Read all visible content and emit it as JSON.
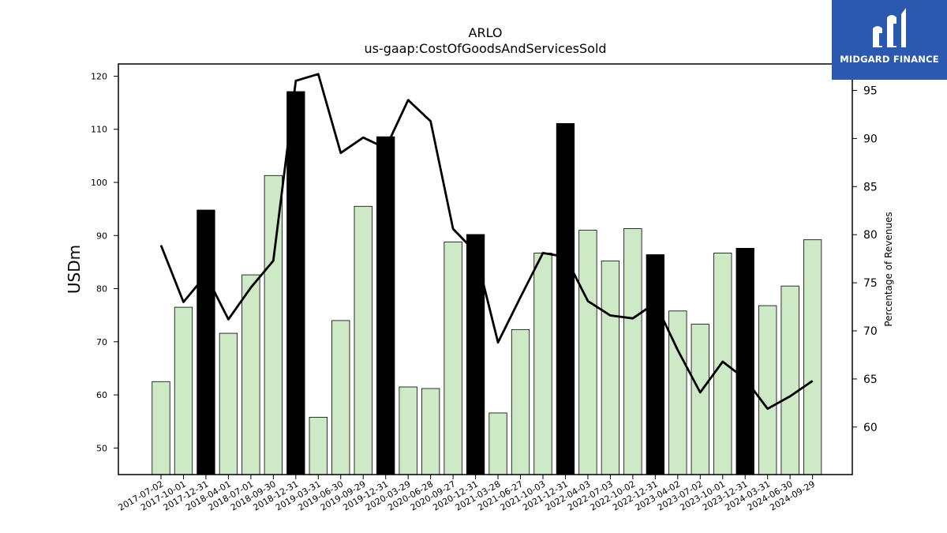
{
  "chart_data": {
    "type": "bar",
    "title": "ARLO",
    "subtitle": "us-gaap:CostOfGoodsAndServicesSold",
    "ylabel": "USDm",
    "y2label": "Percentage of Revenues",
    "ylim": [
      45,
      122.3
    ],
    "y2lim": [
      55.06,
      97.75
    ],
    "yticks": [
      50,
      60,
      70,
      80,
      90,
      100,
      110,
      120
    ],
    "y2ticks": [
      60,
      65,
      70,
      75,
      80,
      85,
      90,
      95
    ],
    "categories": [
      "2017-07-02",
      "2017-10-01",
      "2017-12-31",
      "2018-04-01",
      "2018-07-01",
      "2018-09-30",
      "2018-12-31",
      "2019-03-31",
      "2019-06-30",
      "2019-09-29",
      "2019-12-31",
      "2020-03-29",
      "2020-06-28",
      "2020-09-27",
      "2020-12-31",
      "2021-03-28",
      "2021-06-27",
      "2021-10-03",
      "2021-12-31",
      "2022-04-03",
      "2022-07-03",
      "2022-10-02",
      "2022-12-31",
      "2023-04-02",
      "2023-07-02",
      "2023-10-01",
      "2023-12-31",
      "2024-03-31",
      "2024-06-30",
      "2024-09-29"
    ],
    "series": [
      {
        "values": [
          62.5,
          76.5,
          94.8,
          71.6,
          82.6,
          101.3,
          117.1,
          55.8,
          74.0,
          95.5,
          108.6,
          61.5,
          61.2,
          88.8,
          90.2,
          56.6,
          72.3,
          86.7,
          111.1,
          91.0,
          85.2,
          91.3,
          86.4,
          75.8,
          73.3,
          86.7,
          87.6,
          76.8,
          80.5,
          89.2
        ],
        "highlight": [
          false,
          false,
          true,
          false,
          false,
          false,
          true,
          false,
          false,
          false,
          true,
          false,
          false,
          false,
          true,
          false,
          false,
          false,
          true,
          false,
          false,
          false,
          true,
          false,
          false,
          false,
          true,
          false,
          false,
          false
        ]
      },
      {
        "axis": "right",
        "values": [
          78.9,
          73.0,
          75.8,
          71.2,
          74.5,
          77.3,
          96.0,
          96.7,
          88.5,
          90.1,
          89.0,
          94.0,
          91.8,
          80.6,
          78.2,
          68.8,
          73.5,
          78.1,
          77.7,
          73.1,
          71.6,
          71.3,
          72.9,
          68.0,
          63.6,
          66.8,
          65.0,
          61.9,
          63.2,
          64.8
        ]
      }
    ],
    "colors": {
      "bar": "#cde9c5",
      "bar_highlight": "#000000",
      "line": "#000000"
    }
  },
  "logo": {
    "text": "MIDGARD FINANCE",
    "background": "#2b59b0"
  }
}
